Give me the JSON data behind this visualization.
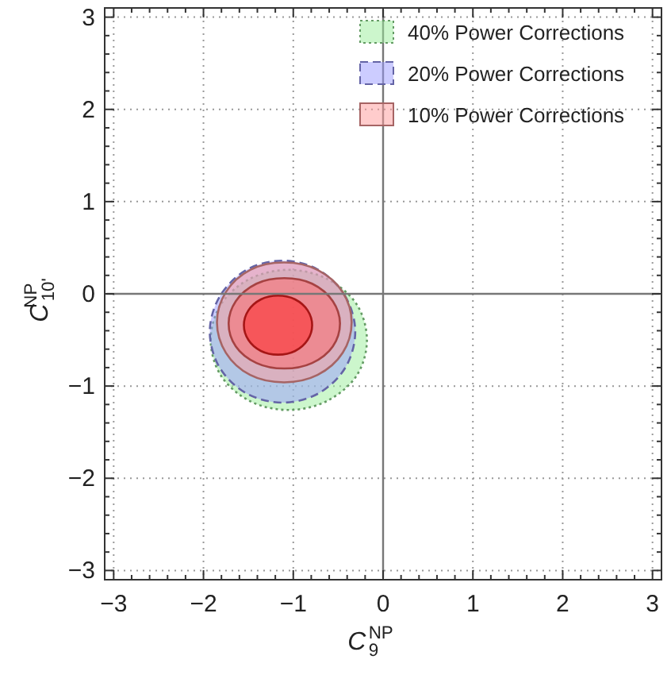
{
  "chart_data": {
    "type": "area",
    "xlabel": "C$_{9}$$^{NP}$",
    "ylabel": "C$_{10'}$$^{NP}$",
    "xlim": [
      -3.1,
      3.1
    ],
    "ylim": [
      -3.1,
      3.1
    ],
    "xticks": [
      -3,
      -2,
      -1,
      0,
      1,
      2,
      3
    ],
    "yticks": [
      -3,
      -2,
      -1,
      0,
      1,
      2,
      3
    ],
    "grid": true,
    "legend": "top right",
    "series": [
      {
        "name": "40% Power Corrections",
        "color": "#99ee99",
        "line_style": "dotted",
        "x": [
          -0.18,
          -0.29,
          -0.62,
          -1.05,
          -1.49,
          -1.81,
          -1.92,
          -1.81,
          -1.49,
          -1.05,
          -0.62,
          -0.29,
          -0.18
        ],
        "values": [
          -0.5,
          -0.12,
          0.16,
          0.26,
          0.16,
          -0.12,
          -0.5,
          -0.88,
          -1.16,
          -1.26,
          -1.16,
          -0.88,
          -0.5
        ]
      },
      {
        "name": "20% Power Corrections",
        "color": "#9999ff",
        "line_style": "dashed",
        "x": [
          -0.31,
          -0.42,
          -0.72,
          -1.12,
          -1.52,
          -1.82,
          -1.93,
          -1.82,
          -1.52,
          -1.12,
          -0.72,
          -0.42,
          -0.31
        ],
        "values": [
          -0.41,
          -0.03,
          0.26,
          0.36,
          0.26,
          -0.03,
          -0.41,
          -0.8,
          -1.08,
          -1.18,
          -1.08,
          -0.8,
          -0.41
        ]
      },
      {
        "name": "10% Power Corrections",
        "color": "#ff9999",
        "line_style": "solid",
        "x": [
          -0.35,
          -0.45,
          -0.73,
          -1.1,
          -1.48,
          -1.75,
          -1.85,
          -1.75,
          -1.48,
          -1.1,
          -0.73,
          -0.45,
          -0.35
        ],
        "values": [
          -0.31,
          0.02,
          0.26,
          0.34,
          0.26,
          0.02,
          -0.31,
          -0.64,
          -0.88,
          -0.96,
          -0.88,
          -0.64,
          -0.31
        ]
      },
      {
        "color": "#ff6666",
        "line_style": "solid",
        "x": [
          -0.48,
          -0.56,
          -0.79,
          -1.1,
          -1.41,
          -1.64,
          -1.72,
          -1.64,
          -1.41,
          -1.1,
          -0.79,
          -0.56,
          -0.48
        ],
        "values": [
          -0.32,
          -0.08,
          0.11,
          0.17,
          0.11,
          -0.08,
          -0.32,
          -0.57,
          -0.75,
          -0.81,
          -0.75,
          -0.57,
          -0.32
        ]
      },
      {
        "color": "#ff2222",
        "line_style": "solid",
        "x": [
          -0.79,
          -0.84,
          -0.98,
          -1.17,
          -1.36,
          -1.5,
          -1.55,
          -1.5,
          -1.36,
          -1.17,
          -0.98,
          -0.84,
          -0.79
        ],
        "values": [
          -0.34,
          -0.18,
          -0.06,
          -0.02,
          -0.06,
          -0.18,
          -0.34,
          -0.5,
          -0.62,
          -0.66,
          -0.62,
          -0.5,
          -0.34
        ]
      }
    ]
  }
}
